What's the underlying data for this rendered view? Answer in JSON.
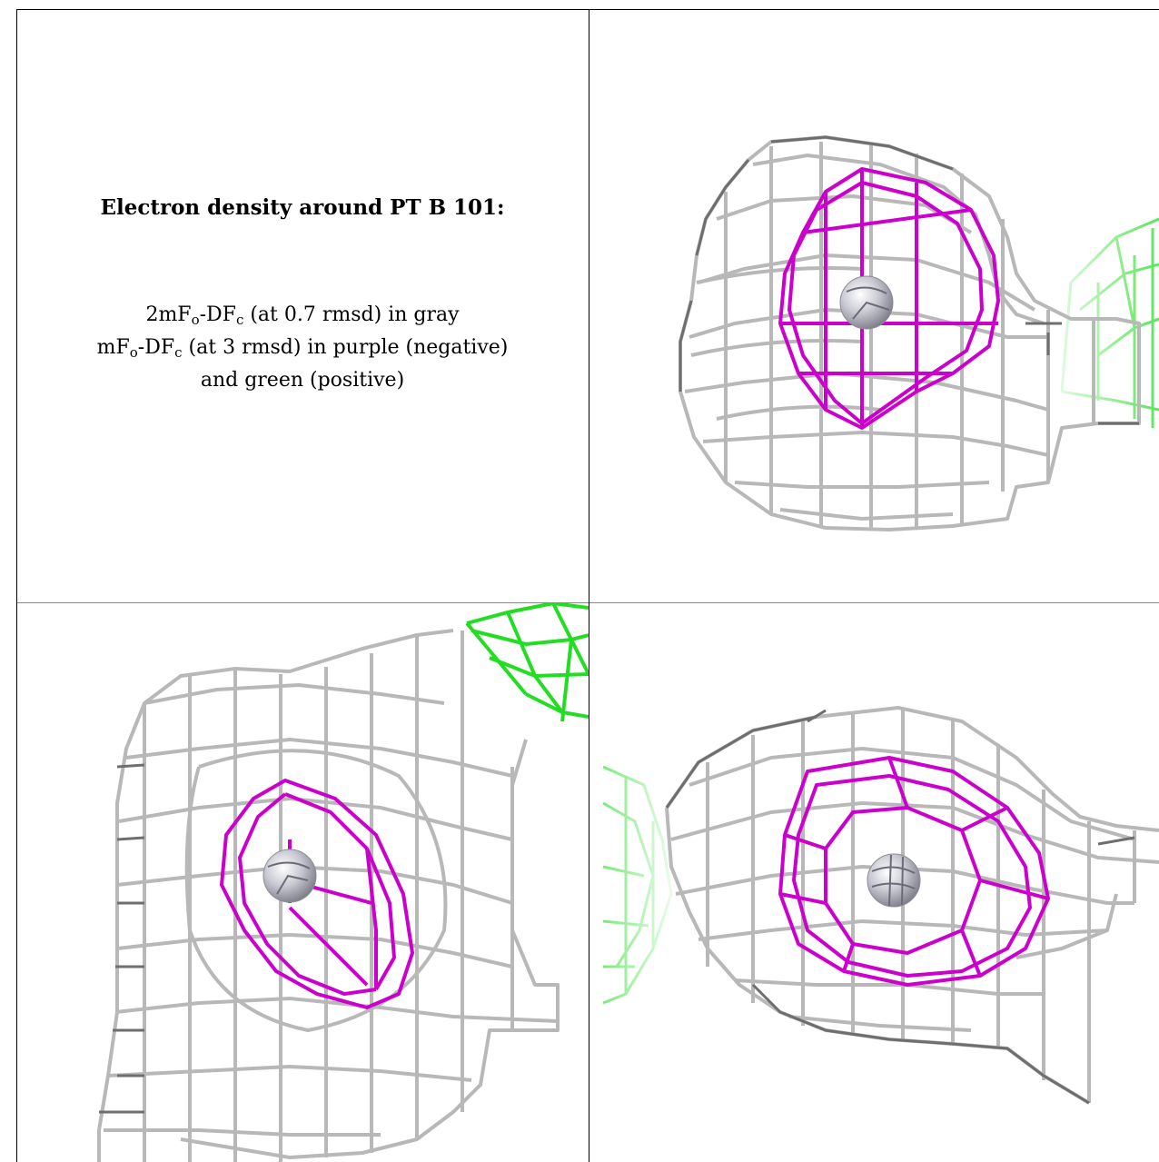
{
  "caption": {
    "title": "Electron density around PT B 101:",
    "line1": {
      "main": "2mF",
      "sub1": "o",
      "mid": "-DF",
      "sub2": "c",
      "rest": " (at 0.7 rmsd) in gray"
    },
    "line2": {
      "main": "mF",
      "sub1": "o",
      "mid": "-DF",
      "sub2": "c",
      "rest": " (at 3 rmsd) in purple (negative)"
    },
    "line3": "and green (positive)"
  },
  "colors": {
    "grid_mesh": "#b8b8b8",
    "grid_mesh_dark": "#6e6e6e",
    "negative_mesh": "#cc00cc",
    "positive_mesh": "#22dd22",
    "atom": "#c8c8d2"
  },
  "panels": [
    {
      "view": "top-right",
      "atom": "PT"
    },
    {
      "view": "bottom-left",
      "atom": "PT"
    },
    {
      "view": "bottom-right",
      "atom": "PT"
    }
  ]
}
